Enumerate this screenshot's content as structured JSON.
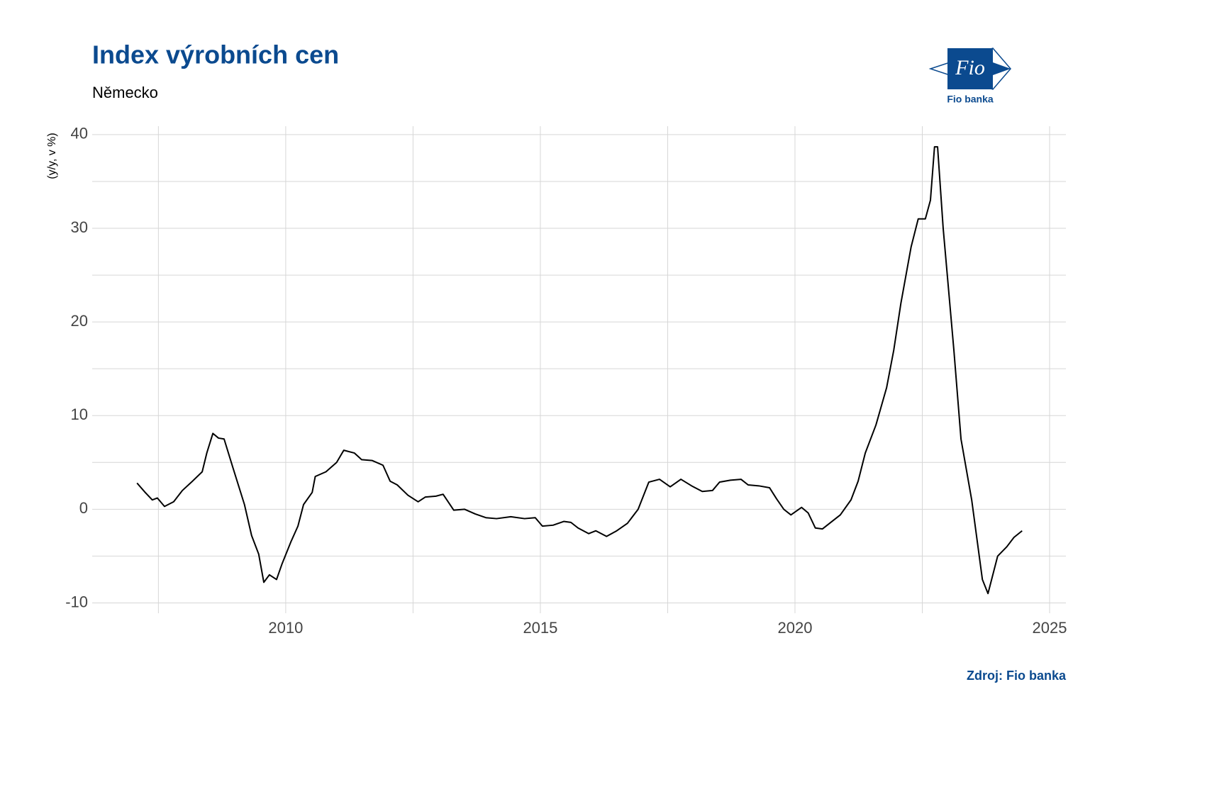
{
  "chart_data": {
    "type": "line",
    "title": "Index výrobních cen",
    "subtitle": "Německo",
    "ylabel": "(y/y, v %)",
    "source": "Zdroj: Fio banka",
    "logo": {
      "mark": "Fio",
      "caption": "Fio banka"
    },
    "grid": true,
    "xlim": [
      2006.2,
      2025.32
    ],
    "xticks": [
      2010,
      2015,
      2020,
      2025
    ],
    "ylim": [
      -11.1,
      40.9
    ],
    "yticks": [
      -10,
      0,
      10,
      20,
      30,
      40
    ],
    "x": [
      2007.08,
      2007.24,
      2007.38,
      2007.48,
      2007.62,
      2007.8,
      2007.97,
      2008.15,
      2008.36,
      2008.45,
      2008.57,
      2008.68,
      2008.79,
      2008.96,
      2009.19,
      2009.33,
      2009.47,
      2009.57,
      2009.68,
      2009.82,
      2009.93,
      2010.1,
      2010.24,
      2010.35,
      2010.52,
      2010.58,
      2010.79,
      2011.0,
      2011.14,
      2011.35,
      2011.49,
      2011.7,
      2011.91,
      2012.05,
      2012.19,
      2012.4,
      2012.6,
      2012.74,
      2012.95,
      2013.09,
      2013.3,
      2013.51,
      2013.72,
      2013.93,
      2014.14,
      2014.42,
      2014.69,
      2014.9,
      2015.04,
      2015.25,
      2015.46,
      2015.6,
      2015.74,
      2015.95,
      2016.09,
      2016.3,
      2016.5,
      2016.71,
      2016.92,
      2017.13,
      2017.34,
      2017.55,
      2017.76,
      2017.97,
      2018.18,
      2018.38,
      2018.52,
      2018.73,
      2018.94,
      2019.08,
      2019.29,
      2019.5,
      2019.64,
      2019.78,
      2019.92,
      2020.13,
      2020.26,
      2020.4,
      2020.54,
      2020.75,
      2020.89,
      2021.1,
      2021.24,
      2021.38,
      2021.59,
      2021.8,
      2021.94,
      2022.08,
      2022.28,
      2022.42,
      2022.56,
      2022.66,
      2022.74,
      2022.8,
      2022.91,
      2023.12,
      2023.26,
      2023.47,
      2023.68,
      2023.79,
      2023.98,
      2024.16,
      2024.3,
      2024.46
    ],
    "series": [
      {
        "name": "Index výrobních cen",
        "color": "#000000",
        "values": [
          2.8,
          1.8,
          1.0,
          1.2,
          0.3,
          0.8,
          2.0,
          2.9,
          4.0,
          6.0,
          8.1,
          7.6,
          7.5,
          4.5,
          0.5,
          -2.8,
          -4.8,
          -7.8,
          -7.0,
          -7.5,
          -5.8,
          -3.5,
          -1.8,
          0.5,
          1.8,
          3.5,
          4.0,
          5.0,
          6.3,
          6.0,
          5.3,
          5.2,
          4.7,
          3.0,
          2.6,
          1.5,
          0.8,
          1.3,
          1.4,
          1.6,
          -0.1,
          0,
          -0.5,
          -0.9,
          -1.0,
          -0.8,
          -1.0,
          -0.9,
          -1.8,
          -1.7,
          -1.3,
          -1.4,
          -2.0,
          -2.6,
          -2.3,
          -2.9,
          -2.3,
          -1.5,
          0,
          2.9,
          3.2,
          2.4,
          3.2,
          2.5,
          1.9,
          2.0,
          2.9,
          3.1,
          3.2,
          2.6,
          2.5,
          2.3,
          1.1,
          0,
          -0.6,
          0.2,
          -0.4,
          -2.0,
          -2.1,
          -1.2,
          -0.6,
          1.0,
          3.0,
          6.0,
          9.0,
          13.0,
          17.0,
          22.0,
          28.0,
          31.0,
          31.0,
          33.0,
          38.7,
          38.7,
          30.0,
          17.0,
          7.5,
          1.0,
          -7.5,
          -9.0,
          -5.0,
          -4.0,
          -3.0,
          -2.3
        ]
      }
    ]
  }
}
